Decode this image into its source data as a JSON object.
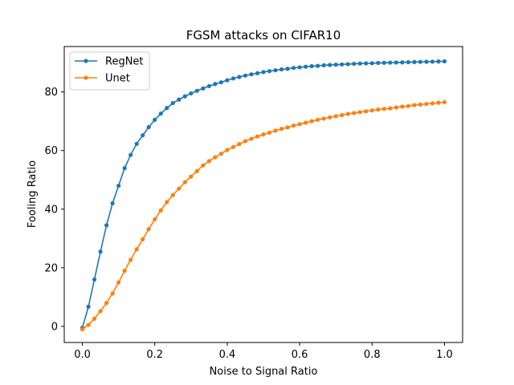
{
  "chart_data": {
    "type": "line",
    "title": "FGSM attacks on CIFAR10",
    "xlabel": "Noise to Signal Ratio",
    "ylabel": "Fooling Ratio",
    "xlim": [
      -0.05,
      1.05
    ],
    "ylim": [
      -5.5,
      95.5
    ],
    "xticks": [
      0.0,
      0.2,
      0.4,
      0.6,
      0.8,
      1.0
    ],
    "xtick_labels": [
      "0.0",
      "0.2",
      "0.4",
      "0.6",
      "0.8",
      "1.0"
    ],
    "yticks": [
      0,
      20,
      40,
      60,
      80
    ],
    "ytick_labels": [
      "0",
      "20",
      "40",
      "60",
      "80"
    ],
    "grid": false,
    "legend": "upper-left",
    "series": [
      {
        "name": "RegNet",
        "color": "#1f77b4",
        "x": [
          0.0,
          0.0167,
          0.0333,
          0.05,
          0.0667,
          0.0833,
          0.1,
          0.1167,
          0.1333,
          0.15,
          0.1667,
          0.1833,
          0.2,
          0.2167,
          0.2333,
          0.25,
          0.2667,
          0.2833,
          0.3,
          0.3167,
          0.3333,
          0.35,
          0.3667,
          0.3833,
          0.4,
          0.4167,
          0.4333,
          0.45,
          0.4667,
          0.4833,
          0.5,
          0.5167,
          0.5333,
          0.55,
          0.5667,
          0.5833,
          0.6,
          0.6167,
          0.6333,
          0.65,
          0.6667,
          0.6833,
          0.7,
          0.7167,
          0.7333,
          0.75,
          0.7667,
          0.7833,
          0.8,
          0.8167,
          0.8333,
          0.85,
          0.8667,
          0.8833,
          0.9,
          0.9167,
          0.9333,
          0.95,
          0.9667,
          0.9833,
          1.0
        ],
        "y": [
          -0.5,
          6.7,
          16.0,
          25.5,
          34.5,
          42.0,
          48.0,
          54.0,
          58.5,
          62.3,
          65.2,
          68.0,
          70.5,
          72.6,
          74.5,
          76.2,
          77.4,
          78.5,
          79.5,
          80.4,
          81.2,
          82.0,
          82.7,
          83.3,
          84.0,
          84.6,
          85.1,
          85.6,
          86.0,
          86.4,
          86.8,
          87.1,
          87.4,
          87.7,
          87.9,
          88.2,
          88.4,
          88.6,
          88.8,
          88.9,
          89.1,
          89.2,
          89.3,
          89.4,
          89.5,
          89.6,
          89.7,
          89.75,
          89.8,
          89.9,
          89.95,
          90.0,
          90.05,
          90.1,
          90.15,
          90.2,
          90.25,
          90.3,
          90.35,
          90.4,
          90.45
        ]
      },
      {
        "name": "Unet",
        "color": "#ff7f0e",
        "x": [
          0.0,
          0.0167,
          0.0333,
          0.05,
          0.0667,
          0.0833,
          0.1,
          0.1167,
          0.1333,
          0.15,
          0.1667,
          0.1833,
          0.2,
          0.2167,
          0.2333,
          0.25,
          0.2667,
          0.2833,
          0.3,
          0.3167,
          0.3333,
          0.35,
          0.3667,
          0.3833,
          0.4,
          0.4167,
          0.4333,
          0.45,
          0.4667,
          0.4833,
          0.5,
          0.5167,
          0.5333,
          0.55,
          0.5667,
          0.5833,
          0.6,
          0.6167,
          0.6333,
          0.65,
          0.6667,
          0.6833,
          0.7,
          0.7167,
          0.7333,
          0.75,
          0.7667,
          0.7833,
          0.8,
          0.8167,
          0.8333,
          0.85,
          0.8667,
          0.8833,
          0.9,
          0.9167,
          0.9333,
          0.95,
          0.9667,
          0.9833,
          1.0
        ],
        "y": [
          -1.0,
          0.5,
          2.6,
          5.2,
          8.0,
          11.2,
          15.0,
          19.0,
          22.7,
          26.3,
          29.7,
          33.2,
          36.5,
          39.6,
          42.4,
          44.8,
          47.0,
          49.2,
          51.1,
          53.0,
          54.9,
          56.4,
          57.7,
          58.9,
          60.2,
          61.2,
          62.2,
          63.2,
          64.0,
          64.8,
          65.5,
          66.1,
          66.8,
          67.4,
          67.9,
          68.5,
          69.0,
          69.5,
          70.0,
          70.5,
          70.9,
          71.3,
          71.7,
          72.1,
          72.5,
          72.8,
          73.1,
          73.4,
          73.7,
          74.0,
          74.2,
          74.4,
          74.7,
          75.0,
          75.2,
          75.5,
          75.7,
          75.9,
          76.1,
          76.3,
          76.5
        ]
      }
    ]
  }
}
